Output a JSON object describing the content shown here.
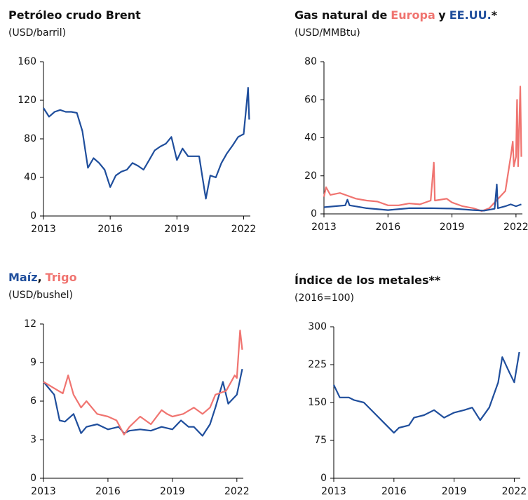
{
  "chart_data": [
    {
      "type": "line",
      "title": "Petróleo crudo Brent",
      "subtitle": "(USD/barril)",
      "xlim": [
        2013,
        2022.3
      ],
      "xticks": [
        2013,
        2016,
        2019,
        2022
      ],
      "ylim": [
        0,
        160
      ],
      "yticks": [
        0,
        40,
        80,
        120,
        160
      ],
      "series": [
        {
          "name": "Brent",
          "color": "#1f4e9c",
          "x": [
            2013,
            2013.25,
            2013.5,
            2013.75,
            2014,
            2014.25,
            2014.5,
            2014.75,
            2015,
            2015.25,
            2015.5,
            2015.75,
            2016,
            2016.25,
            2016.5,
            2016.75,
            2017,
            2017.25,
            2017.5,
            2017.75,
            2018,
            2018.25,
            2018.5,
            2018.75,
            2019,
            2019.25,
            2019.5,
            2019.75,
            2020,
            2020.25,
            2020.3,
            2020.5,
            2020.75,
            2021,
            2021.25,
            2021.5,
            2021.75,
            2022,
            2022.15,
            2022.2,
            2022.25
          ],
          "values": [
            112,
            103,
            108,
            110,
            108,
            108,
            107,
            88,
            50,
            60,
            55,
            48,
            30,
            42,
            46,
            48,
            55,
            52,
            48,
            58,
            68,
            72,
            75,
            82,
            58,
            70,
            62,
            62,
            62,
            25,
            18,
            42,
            40,
            55,
            65,
            73,
            82,
            85,
            120,
            133,
            100
          ]
        }
      ]
    },
    {
      "type": "line",
      "title": "Gas natural de",
      "title_joiner": "y",
      "title_suffix": "*",
      "subtitle": "(USD/MMBtu)",
      "xlim": [
        2013,
        2022.3
      ],
      "xticks": [
        2013,
        2016,
        2019,
        2022
      ],
      "ylim": [
        0,
        80
      ],
      "yticks": [
        0,
        20,
        40,
        60,
        80
      ],
      "series": [
        {
          "name": "Europa",
          "color": "#f07470",
          "x": [
            2013,
            2013.1,
            2013.3,
            2013.75,
            2014,
            2014.5,
            2015,
            2015.5,
            2016,
            2016.5,
            2017,
            2017.5,
            2018,
            2018.15,
            2018.2,
            2018.75,
            2019,
            2019.5,
            2020,
            2020.4,
            2020.75,
            2021,
            2021.5,
            2021.75,
            2021.85,
            2021.9,
            2022,
            2022.05,
            2022.1,
            2022.2,
            2022.25
          ],
          "values": [
            9,
            14,
            10,
            11,
            10,
            8,
            7,
            6.5,
            4.5,
            4.5,
            5.5,
            5,
            7,
            27,
            7,
            8,
            6,
            4,
            3,
            1.5,
            3,
            6,
            12,
            30,
            38,
            25,
            30,
            60,
            25,
            67,
            30
          ]
        },
        {
          "name": "EE.UU.",
          "color": "#1f4e9c",
          "x": [
            2013,
            2013.5,
            2014,
            2014.1,
            2014.2,
            2015,
            2016,
            2017,
            2018,
            2019,
            2020,
            2020.5,
            2021,
            2021.1,
            2021.15,
            2021.5,
            2021.75,
            2022,
            2022.25
          ],
          "values": [
            3.5,
            4,
            4.5,
            7.5,
            4.5,
            3,
            2,
            3,
            3,
            2.8,
            2,
            1.7,
            2.7,
            15.5,
            3,
            4,
            5,
            4,
            5
          ]
        }
      ]
    },
    {
      "type": "line",
      "title_joiner": ",",
      "subtitle": "(USD/bushel)",
      "xlim": [
        2013,
        2022.3
      ],
      "xticks": [
        2013,
        2016,
        2019,
        2022
      ],
      "ylim": [
        0,
        12
      ],
      "yticks": [
        0,
        3,
        6,
        9,
        12
      ],
      "series": [
        {
          "name": "Maíz",
          "color": "#1f4e9c",
          "x": [
            2013,
            2013.5,
            2013.75,
            2014,
            2014.4,
            2014.75,
            2015,
            2015.5,
            2016,
            2016.5,
            2016.75,
            2017,
            2017.5,
            2018,
            2018.5,
            2019,
            2019.4,
            2019.75,
            2020,
            2020.4,
            2020.75,
            2021,
            2021.35,
            2021.6,
            2022,
            2022.25
          ],
          "values": [
            7.5,
            6.5,
            4.5,
            4.4,
            5,
            3.5,
            4,
            4.2,
            3.8,
            4,
            3.5,
            3.7,
            3.8,
            3.7,
            4,
            3.8,
            4.5,
            4,
            4,
            3.3,
            4.2,
            5.5,
            7.5,
            5.8,
            6.5,
            8.5
          ]
        },
        {
          "name": "Trigo",
          "color": "#f07470",
          "x": [
            2013,
            2013.5,
            2013.9,
            2014.15,
            2014.4,
            2014.75,
            2015,
            2015.5,
            2016,
            2016.4,
            2016.75,
            2017,
            2017.5,
            2018,
            2018.5,
            2018.75,
            2019,
            2019.5,
            2020,
            2020.4,
            2020.75,
            2021,
            2021.5,
            2021.9,
            2022,
            2022.15,
            2022.25
          ],
          "values": [
            7.5,
            7,
            6.6,
            8,
            6.5,
            5.5,
            6,
            5,
            4.8,
            4.5,
            3.4,
            4,
            4.8,
            4.2,
            5.3,
            5,
            4.8,
            5,
            5.5,
            5,
            5.5,
            6.5,
            6.8,
            8,
            7.8,
            11.5,
            10
          ]
        }
      ]
    },
    {
      "type": "line",
      "title": "Índice de los metales**",
      "subtitle": "(2016=100)",
      "xlim": [
        2013,
        2022.3
      ],
      "xticks": [
        2013,
        2016,
        2019,
        2022
      ],
      "ylim": [
        0,
        300
      ],
      "yticks": [
        0,
        75,
        150,
        225,
        300
      ],
      "series": [
        {
          "name": "Metales",
          "color": "#1f4e9c",
          "x": [
            2013,
            2013.3,
            2013.75,
            2014,
            2014.5,
            2015,
            2015.5,
            2016,
            2016.25,
            2016.75,
            2017,
            2017.5,
            2018,
            2018.5,
            2019,
            2019.5,
            2019.9,
            2020.3,
            2020.75,
            2021.2,
            2021.4,
            2021.75,
            2022,
            2022.25
          ],
          "values": [
            185,
            160,
            160,
            155,
            150,
            130,
            110,
            90,
            100,
            105,
            120,
            125,
            135,
            120,
            130,
            135,
            140,
            115,
            140,
            190,
            240,
            210,
            190,
            250
          ]
        }
      ]
    }
  ]
}
